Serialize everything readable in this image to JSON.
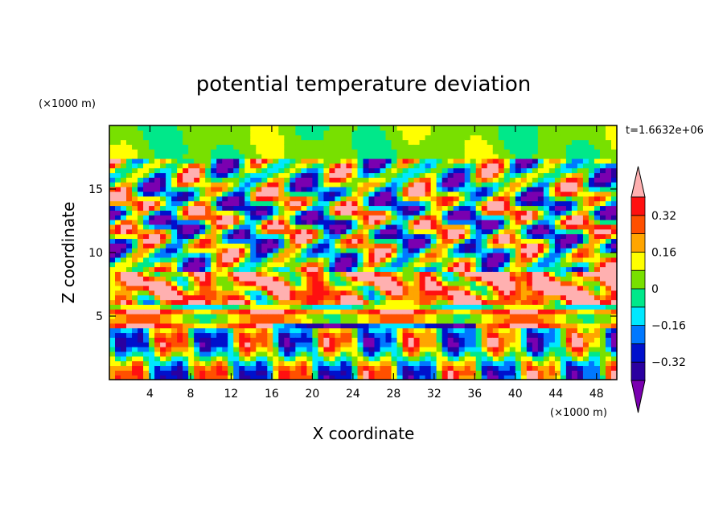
{
  "chart_data": {
    "type": "heatmap",
    "title": "potential temperature deviation",
    "xlabel": "X coordinate",
    "ylabel": "Z coordinate",
    "x_unit": "(×1000 m)",
    "y_unit": "(×1000 m)",
    "time_label": "t=1.6632e+06",
    "xlim": [
      0,
      50
    ],
    "ylim": [
      0,
      20
    ],
    "x_ticks": [
      4,
      8,
      12,
      16,
      20,
      24,
      28,
      32,
      36,
      40,
      44,
      48
    ],
    "x_tick_labels": [
      "4",
      "8",
      "12",
      "16",
      "20",
      "24",
      "28",
      "32",
      "36",
      "40",
      "44",
      "48"
    ],
    "y_ticks": [
      5,
      10,
      15
    ],
    "y_tick_labels": [
      "5",
      "10",
      "15"
    ],
    "colorbar": {
      "levels": [
        -0.4,
        -0.32,
        -0.24,
        -0.16,
        -0.08,
        0,
        0.08,
        0.16,
        0.24,
        0.32,
        0.4
      ],
      "labeled_levels": [
        0.32,
        0.16,
        0,
        -0.16,
        -0.32
      ],
      "labels": [
        "0.32",
        "0.16",
        "0",
        "−0.16",
        "−0.32"
      ],
      "colors": [
        "#7a00b0",
        "#2a00a0",
        "#0010cc",
        "#0078ff",
        "#00e8ff",
        "#00e88a",
        "#78e000",
        "#ffff00",
        "#ffa500",
        "#ff5000",
        "#ff1010",
        "#ffb0b0"
      ],
      "extend": "both"
    }
  }
}
